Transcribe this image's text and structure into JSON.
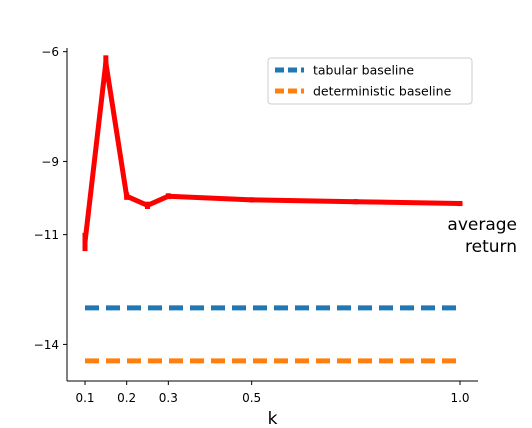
{
  "chart_data": {
    "type": "line",
    "xlabel": "k",
    "ylabel": "average\nreturn",
    "xlim": [
      0.09,
      1.09
    ],
    "ylim": [
      -15.0,
      -5.9
    ],
    "x_ticks": [
      0.1,
      0.2,
      0.3,
      0.5,
      1.0
    ],
    "x_tick_labels": [
      "0.1",
      "0.2",
      "0.3",
      "0.5",
      "1.0"
    ],
    "y_ticks": [
      -6,
      -9,
      -11,
      -14
    ],
    "y_tick_labels": [
      "−6",
      "−9",
      "−11",
      "−14"
    ],
    "series": [
      {
        "x": [
          0.1,
          0.15,
          0.2,
          0.25,
          0.3,
          0.5,
          0.75,
          1.0
        ],
        "y": [
          -11.2,
          -6.3,
          -9.95,
          -10.2,
          -9.95,
          -10.05,
          -10.1,
          -10.15
        ],
        "err": [
          0.25,
          0.2,
          0.1,
          0.1,
          0.08,
          0.07,
          0.07,
          0.07
        ],
        "color": "#ff0000",
        "style": "solid"
      },
      {
        "name": "tabular baseline",
        "x": [
          0.1,
          1.0
        ],
        "y": [
          -13.0,
          -13.0
        ],
        "color": "#1f77b4",
        "style": "dashed"
      },
      {
        "name": "deterministic baseline",
        "x": [
          0.1,
          1.0
        ],
        "y": [
          -14.45,
          -14.45
        ],
        "color": "#ff7f0e",
        "style": "dashed"
      }
    ],
    "legend_position": "top-right",
    "grid": false
  }
}
